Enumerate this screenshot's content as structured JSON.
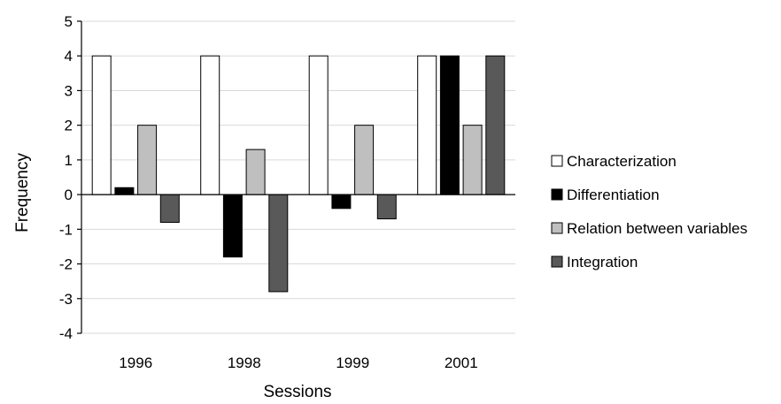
{
  "chart_data": {
    "type": "bar",
    "title": "",
    "xlabel": "Sessions",
    "ylabel": "Frequency",
    "categories": [
      "1996",
      "1998",
      "1999",
      "2001"
    ],
    "ylim": [
      -4,
      5
    ],
    "yticks": [
      "5",
      "4",
      "3",
      "2",
      "1",
      "0",
      "-1",
      "-2",
      "-3",
      "-4"
    ],
    "grid": true,
    "legend_position": "right",
    "series": [
      {
        "name": "Characterization",
        "color": "#ffffff",
        "values": [
          4,
          4,
          4,
          4
        ]
      },
      {
        "name": "Differentiation",
        "color": "#000000",
        "values": [
          0.2,
          -1.8,
          -0.4,
          4
        ]
      },
      {
        "name": "Relation between variables",
        "color": "#bfbfbf",
        "values": [
          2,
          1.3,
          2,
          2
        ]
      },
      {
        "name": "Integration",
        "color": "#595959",
        "values": [
          -0.8,
          -2.8,
          -0.7,
          4
        ]
      }
    ]
  }
}
